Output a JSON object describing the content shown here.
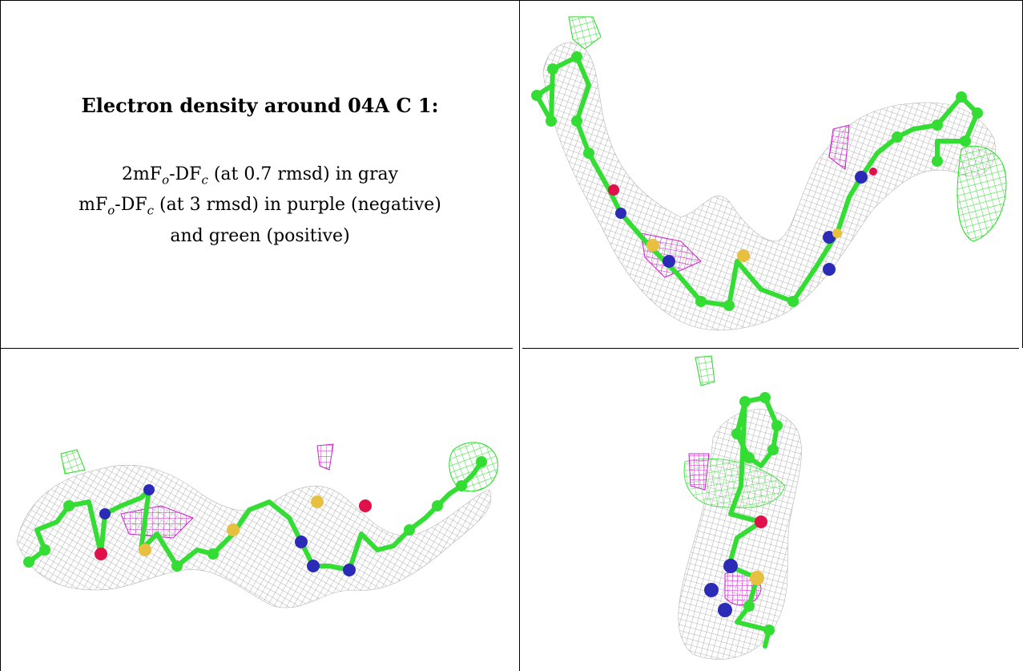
{
  "legend": {
    "title": "Electron density around 04A C 1:",
    "line1_pre": "2mF",
    "line1_sub1": "o",
    "line1_mid": "-DF",
    "line1_sub2": "c",
    "line1_post": " (at 0.7 rmsd) in gray",
    "line2_pre": "mF",
    "line2_sub1": "o",
    "line2_mid": "-DF",
    "line2_sub2": "c",
    "line2_post": " (at 3 rmsd) in purple (negative)",
    "line3": "and green (positive)"
  },
  "colors": {
    "mesh": "#9a9a9a",
    "carbon": "#33dd33",
    "nitrogen": "#2b2bb8",
    "oxygen": "#e0104a",
    "sulfur": "#e8c040",
    "neg_density": "#cc22cc",
    "pos_density": "#22dd22"
  }
}
